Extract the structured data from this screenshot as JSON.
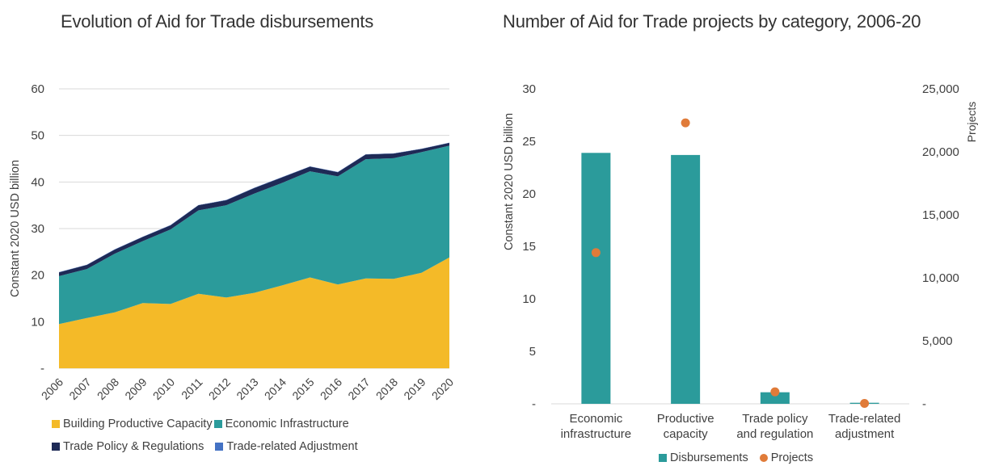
{
  "chart_data": [
    {
      "type": "area",
      "title": "Evolution of Aid for Trade disbursements",
      "ylabel": "Constant 2020 USD billion",
      "xlabel": "",
      "ylim": [
        0,
        60
      ],
      "yticks": [
        "-",
        "10",
        "20",
        "30",
        "40",
        "50",
        "60"
      ],
      "stacked": true,
      "grid": true,
      "legend_position": "bottom",
      "categories": [
        "2006",
        "2007",
        "2008",
        "2009",
        "2010",
        "2011",
        "2012",
        "2013",
        "2014",
        "2015",
        "2016",
        "2017",
        "2018",
        "2019",
        "2020"
      ],
      "series": [
        {
          "name": "Building Productive Capacity",
          "color": "#F4BA28",
          "values": [
            9.5,
            10.8,
            12.0,
            14.0,
            13.8,
            16.0,
            15.2,
            16.2,
            17.8,
            19.5,
            18.0,
            19.3,
            19.2,
            20.5,
            23.8
          ]
        },
        {
          "name": "Economic Infrastructure",
          "color": "#2B9B9B",
          "values": [
            10.3,
            10.5,
            12.6,
            13.3,
            16.0,
            17.9,
            19.8,
            21.3,
            22.0,
            22.8,
            23.2,
            25.6,
            25.9,
            25.9,
            24.0
          ]
        },
        {
          "name": "Trade Policy & Regulations",
          "color": "#1E2A56",
          "values": [
            0.8,
            0.9,
            0.9,
            0.9,
            0.9,
            1.1,
            1.1,
            1.2,
            1.2,
            1.0,
            0.9,
            1.0,
            1.0,
            0.7,
            0.6
          ]
        },
        {
          "name": "Trade-related Adjustment",
          "color": "#4472C4",
          "values": [
            0.05,
            0.05,
            0.05,
            0.05,
            0.05,
            0.05,
            0.05,
            0.05,
            0.05,
            0.05,
            0.05,
            0.05,
            0.05,
            0.05,
            0.05
          ]
        }
      ]
    },
    {
      "type": "bar",
      "title": "Number of Aid for Trade projects by category, 2006-20",
      "ylabel": "Constant 2020 USD billion",
      "y2label": "Projects",
      "ylim": [
        0,
        30
      ],
      "y2lim": [
        0,
        25000
      ],
      "yticks": [
        "-",
        "5",
        "10",
        "15",
        "20",
        "25",
        "30"
      ],
      "y2ticks": [
        "-",
        "5,000",
        "10,000",
        "15,000",
        "20,000",
        "25,000"
      ],
      "legend_position": "bottom",
      "categories": [
        "Economic infrastructure",
        "Productive capacity",
        "Trade policy and regulation",
        "Trade-related adjustment"
      ],
      "category_lines": [
        [
          "Economic",
          "infrastructure"
        ],
        [
          "Productive",
          "capacity"
        ],
        [
          "Trade policy",
          "and regulation"
        ],
        [
          "Trade-related",
          "adjustment"
        ]
      ],
      "series": [
        {
          "name": "Disbursements",
          "type": "bar",
          "axis": "left",
          "color": "#2B9B9B",
          "values": [
            23.9,
            23.7,
            1.1,
            0.1
          ]
        },
        {
          "name": "Projects",
          "type": "scatter",
          "axis": "right",
          "color": "#E07B39",
          "values": [
            12000,
            22300,
            950,
            30
          ]
        }
      ]
    }
  ]
}
